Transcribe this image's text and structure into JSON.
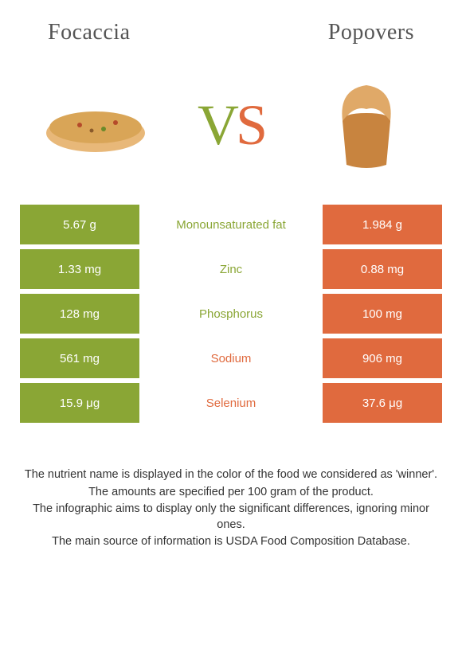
{
  "left_food": "Focaccia",
  "right_food": "Popovers",
  "left_color": "#8aa635",
  "right_color": "#e06a3e",
  "mid_bg": "#ffffff",
  "vs": {
    "v": "V",
    "s": "S"
  },
  "rows": [
    {
      "left": "5.67 g",
      "label": "Monounsaturated fat",
      "right": "1.984 g",
      "winner": "left"
    },
    {
      "left": "1.33 mg",
      "label": "Zinc",
      "right": "0.88 mg",
      "winner": "left"
    },
    {
      "left": "128 mg",
      "label": "Phosphorus",
      "right": "100 mg",
      "winner": "left"
    },
    {
      "left": "561 mg",
      "label": "Sodium",
      "right": "906 mg",
      "winner": "right"
    },
    {
      "left": "15.9 μg",
      "label": "Selenium",
      "right": "37.6 μg",
      "winner": "right"
    }
  ],
  "notes": [
    "The nutrient name is displayed in the color of the food we considered as 'winner'.",
    "The amounts are specified per 100 gram of the product.",
    "The infographic aims to display only the significant differences, ignoring minor ones.",
    "The main source of information is USDA Food Composition Database."
  ]
}
